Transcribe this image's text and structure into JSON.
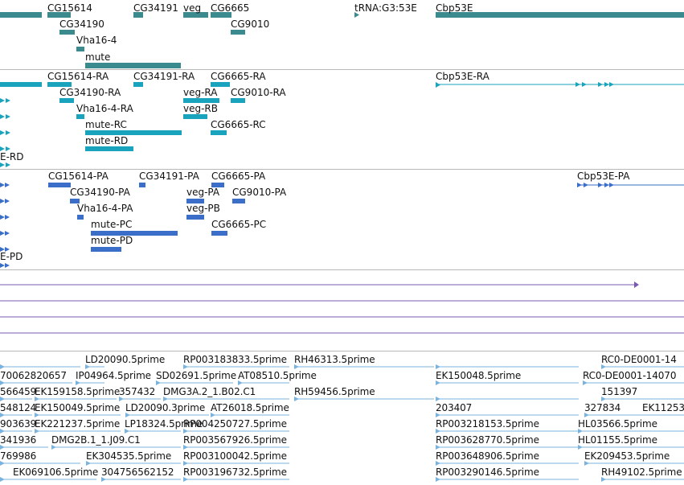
{
  "colors": {
    "gene": "#3a8a8e",
    "transcript": "#1aa3bd",
    "protein": "#3a6ec8",
    "line": "#7a5ab0",
    "est": "#7ab3de",
    "divider": "#b8b8b8"
  },
  "gene_track": {
    "labels": [
      "CG15614",
      "CG34191",
      "veg",
      "CG6665",
      "tRNA:G3:53E",
      "Cbp53E",
      "CG34190",
      "CG9010",
      "Vha16-4",
      "mute"
    ]
  },
  "transcript_track": {
    "labels": [
      "CG15614-RA",
      "CG34191-RA",
      "CG6665-RA",
      "Cbp53E-RA",
      "CG34190-RA",
      "veg-RA",
      "CG9010-RA",
      "Vha16-4-RA",
      "veg-RB",
      "mute-RC",
      "CG6665-RC",
      "mute-RD",
      "E-RD"
    ]
  },
  "protein_track": {
    "labels": [
      "CG15614-PA",
      "CG34191-PA",
      "CG6665-PA",
      "Cbp53E-PA",
      "CG34190-PA",
      "veg-PA",
      "CG9010-PA",
      "Vha16-4-PA",
      "veg-PB",
      "mute-PC",
      "CG6665-PC",
      "mute-PD",
      "E-PD"
    ]
  },
  "est_track": {
    "labels": [
      "LD20090.5prime",
      "RP003183833.5prime",
      "RH46313.5prime",
      "RC0-DE0001-14",
      "70062820657",
      "IP04964.5prime",
      "SD02691.5prime",
      "AT08510.5prime",
      "EK150048.5prime",
      "RC0-DE0001-14070",
      "566459",
      "EK159158.5prime",
      "357432",
      "DMG3A.2_1.B02.C1",
      "RH59456.5prime",
      "151397",
      "548124",
      "EK150049.5prime",
      "LD20090.3prime",
      "AT26018.5prime",
      "203407",
      "327834",
      "EK11253",
      "903639",
      "EK221237.5prime",
      "LP18324.5prime",
      "RP004250727.5prime",
      "RP003218153.5prime",
      "HL03566.5prime",
      "341936",
      "DMG2B.1_1.J09.C1",
      "RP003567926.5prime",
      "RP003628770.5prime",
      "HL01155.5prime",
      "769986",
      "EK304535.5prime",
      "RP003100042.5prime",
      "RP003648906.5prime",
      "EK209453.5prime",
      "EK069106.5prime",
      "304756562152",
      "RP003196732.5prime",
      "RP003290146.5prime",
      "RH49102.5prime"
    ]
  }
}
